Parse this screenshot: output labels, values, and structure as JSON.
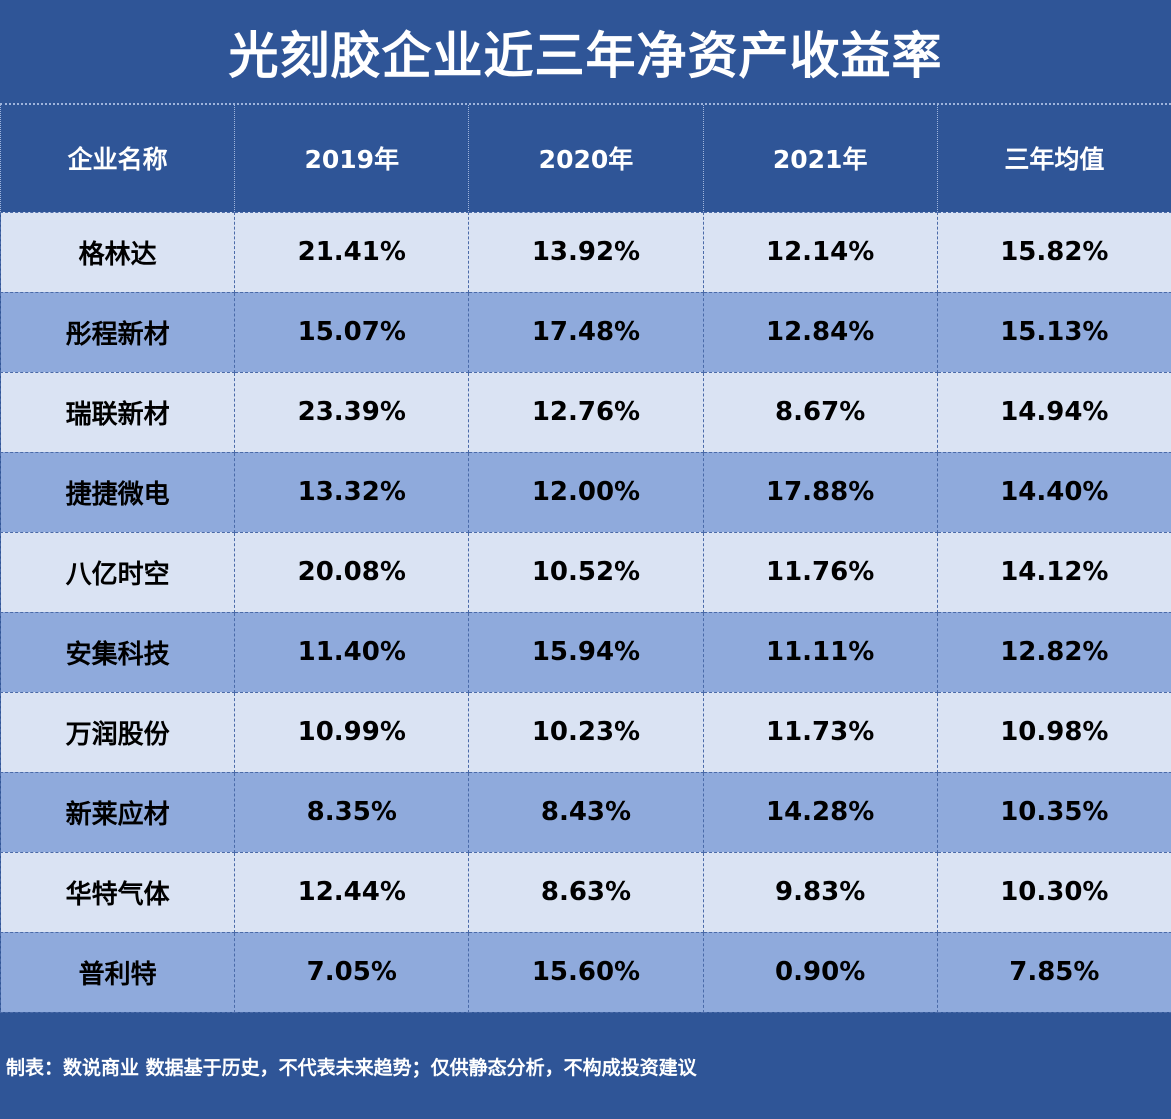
{
  "chart_data": {
    "type": "table",
    "title": "光刻胶企业近三年净资产收益率",
    "columns": [
      "企业名称",
      "2019年",
      "2020年",
      "2021年",
      "三年均值"
    ],
    "rows": [
      [
        "格林达",
        "21.41%",
        "13.92%",
        "12.14%",
        "15.82%"
      ],
      [
        "彤程新材",
        "15.07%",
        "17.48%",
        "12.84%",
        "15.13%"
      ],
      [
        "瑞联新材",
        "23.39%",
        "12.76%",
        "8.67%",
        "14.94%"
      ],
      [
        "捷捷微电",
        "13.32%",
        "12.00%",
        "17.88%",
        "14.40%"
      ],
      [
        "八亿时空",
        "20.08%",
        "10.52%",
        "11.76%",
        "14.12%"
      ],
      [
        "安集科技",
        "11.40%",
        "15.94%",
        "11.11%",
        "12.82%"
      ],
      [
        "万润股份",
        "10.99%",
        "10.23%",
        "11.73%",
        "10.98%"
      ],
      [
        "新莱应材",
        "8.35%",
        "8.43%",
        "14.28%",
        "10.35%"
      ],
      [
        "华特气体",
        "12.44%",
        "8.63%",
        "9.83%",
        "10.30%"
      ],
      [
        "普利特",
        "7.05%",
        "15.60%",
        "0.90%",
        "7.85%"
      ]
    ],
    "footnote": "制表：数说商业 数据基于历史，不代表未来趋势；仅供静态分析，不构成投资建议"
  },
  "colors": {
    "header_bg": "#2f5597",
    "row_light": "#dae3f3",
    "row_dark": "#8faadc",
    "text_light": "#ffffff",
    "text_dark": "#000000"
  }
}
